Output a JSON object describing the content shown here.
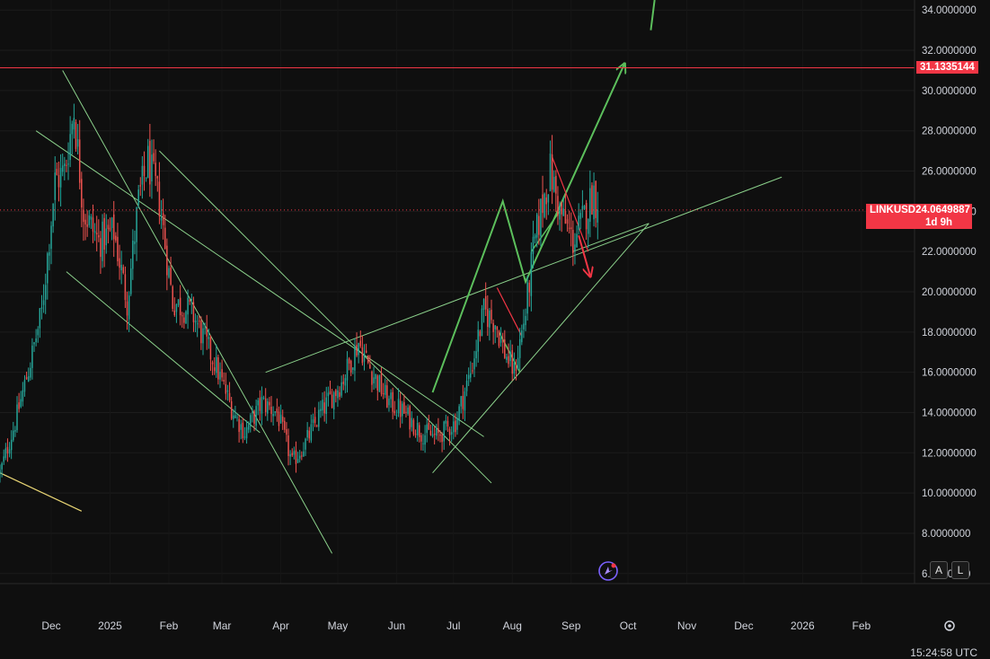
{
  "chart_data": {
    "type": "candlestick",
    "symbol": "LINKUSD",
    "y_ticks": [
      "6.0000000",
      "8.0000000",
      "10.0000000",
      "12.0000000",
      "14.0000000",
      "16.0000000",
      "18.0000000",
      "20.0000000",
      "22.0000000",
      "24.0000000",
      "26.0000000",
      "28.0000000",
      "30.0000000",
      "32.0000000",
      "34.0000000"
    ],
    "x_labels": [
      {
        "label": "Dec",
        "date": "2024-12-01"
      },
      {
        "label": "2025",
        "date": "2025-01-01"
      },
      {
        "label": "Feb",
        "date": "2025-02-01"
      },
      {
        "label": "Mar",
        "date": "2025-03-01"
      },
      {
        "label": "Apr",
        "date": "2025-04-01"
      },
      {
        "label": "May",
        "date": "2025-05-01"
      },
      {
        "label": "Jun",
        "date": "2025-06-01"
      },
      {
        "label": "Jul",
        "date": "2025-07-01"
      },
      {
        "label": "Aug",
        "date": "2025-08-01"
      },
      {
        "label": "Sep",
        "date": "2025-09-01"
      },
      {
        "label": "Oct",
        "date": "2025-10-01"
      },
      {
        "label": "Nov",
        "date": "2025-11-01"
      },
      {
        "label": "Dec",
        "date": "2025-12-01"
      },
      {
        "label": "2026",
        "date": "2026-01-01"
      },
      {
        "label": "Feb",
        "date": "2026-02-01"
      }
    ],
    "y_range": [
      5.5,
      34.5
    ],
    "x_range": [
      "2024-11-04",
      "2026-03-01"
    ],
    "horizontal_level": {
      "value": 31.1335144,
      "label": "31.1335144",
      "color": "#f23645"
    },
    "last_price": {
      "value": 24.0649887,
      "symbol_label": "LINKUSD",
      "value_label": "24.0649887",
      "countdown": "1d 9h",
      "color": "#f23645"
    },
    "candle_anchors": [
      [
        "2024-11-04",
        11.0
      ],
      [
        "2024-11-12",
        13.5
      ],
      [
        "2024-11-20",
        16.5
      ],
      [
        "2024-11-26",
        19.0
      ],
      [
        "2024-12-03",
        25.5
      ],
      [
        "2024-12-08",
        26.0
      ],
      [
        "2024-12-13",
        29.0
      ],
      [
        "2024-12-18",
        24.0
      ],
      [
        "2024-12-26",
        22.5
      ],
      [
        "2025-01-03",
        23.0
      ],
      [
        "2025-01-10",
        19.5
      ],
      [
        "2025-01-16",
        24.5
      ],
      [
        "2025-01-21",
        26.5
      ],
      [
        "2025-01-27",
        24.5
      ],
      [
        "2025-02-03",
        19.5
      ],
      [
        "2025-02-13",
        19.0
      ],
      [
        "2025-02-25",
        16.5
      ],
      [
        "2025-03-07",
        14.0
      ],
      [
        "2025-03-13",
        13.0
      ],
      [
        "2025-03-22",
        14.5
      ],
      [
        "2025-03-30",
        14.0
      ],
      [
        "2025-04-07",
        11.5
      ],
      [
        "2025-04-14",
        12.5
      ],
      [
        "2025-04-22",
        14.0
      ],
      [
        "2025-05-03",
        15.5
      ],
      [
        "2025-05-12",
        17.5
      ],
      [
        "2025-05-19",
        16.0
      ],
      [
        "2025-05-28",
        14.5
      ],
      [
        "2025-06-05",
        14.0
      ],
      [
        "2025-06-14",
        13.0
      ],
      [
        "2025-06-22",
        12.8
      ],
      [
        "2025-07-02",
        13.5
      ],
      [
        "2025-07-10",
        16.0
      ],
      [
        "2025-07-17",
        19.0
      ],
      [
        "2025-07-23",
        18.5
      ],
      [
        "2025-07-28",
        17.0
      ],
      [
        "2025-08-02",
        16.0
      ],
      [
        "2025-08-08",
        19.0
      ],
      [
        "2025-08-12",
        22.0
      ],
      [
        "2025-08-16",
        24.0
      ],
      [
        "2025-08-21",
        26.0
      ],
      [
        "2025-08-26",
        24.0
      ],
      [
        "2025-09-02",
        22.5
      ],
      [
        "2025-09-07",
        23.5
      ],
      [
        "2025-09-13",
        25.0
      ],
      [
        "2025-09-15",
        24.0649887
      ]
    ],
    "drawings": [
      {
        "kind": "line",
        "color": "#8bd18b",
        "pts": [
          [
            "2024-12-07",
            31.0
          ],
          [
            "2025-04-28",
            7.0
          ]
        ]
      },
      {
        "kind": "line",
        "color": "#8bd18b",
        "pts": [
          [
            "2024-11-23",
            28.0
          ],
          [
            "2025-07-17",
            12.8
          ]
        ]
      },
      {
        "kind": "line",
        "color": "#8bd18b",
        "pts": [
          [
            "2024-12-09",
            21.0
          ],
          [
            "2025-03-21",
            13.0
          ]
        ]
      },
      {
        "kind": "line",
        "color": "#8bd18b",
        "pts": [
          [
            "2025-01-27",
            27.0
          ],
          [
            "2025-07-21",
            10.5
          ]
        ]
      },
      {
        "kind": "line",
        "color": "#8bd18b",
        "pts": [
          [
            "2025-03-24",
            16.0
          ],
          [
            "2025-12-21",
            25.7
          ]
        ]
      },
      {
        "kind": "line",
        "color": "#8bd18b",
        "pts": [
          [
            "2025-06-20",
            11.0
          ],
          [
            "2025-10-12",
            23.4
          ]
        ]
      },
      {
        "kind": "line",
        "color": "#8bd18b",
        "pts": [
          [
            "2025-09-02",
            22.0
          ],
          [
            "2025-10-12",
            23.4
          ]
        ]
      },
      {
        "kind": "polyline",
        "color": "#5cbf5c",
        "width": 2,
        "arrow": true,
        "pts": [
          [
            "2025-06-20",
            15.0
          ],
          [
            "2025-07-27",
            24.5
          ],
          [
            "2025-08-08",
            20.5
          ],
          [
            "2025-09-29",
            31.3
          ]
        ]
      },
      {
        "kind": "line",
        "color": "#5cbf5c",
        "width": 2,
        "pts": [
          [
            "2025-10-13",
            33.0
          ],
          [
            "2025-10-15",
            34.5
          ]
        ]
      },
      {
        "kind": "line",
        "color": "#5cbf5c",
        "width": 1.5,
        "pts": [
          [
            "2025-07-25",
            18.0
          ],
          [
            "2025-08-05",
            16.0
          ]
        ]
      },
      {
        "kind": "line",
        "color": "#5cbf5c",
        "width": 1.5,
        "pts": [
          [
            "2025-08-11",
            22.0
          ],
          [
            "2025-08-26",
            24.0
          ]
        ]
      },
      {
        "kind": "line",
        "color": "#f23645",
        "width": 1.2,
        "pts": [
          [
            "2025-07-24",
            20.2
          ],
          [
            "2025-08-06",
            17.8
          ]
        ]
      },
      {
        "kind": "line",
        "color": "#f23645",
        "width": 1.2,
        "pts": [
          [
            "2025-08-22",
            26.7
          ],
          [
            "2025-09-10",
            22.0
          ]
        ]
      },
      {
        "kind": "arrow",
        "color": "#f23645",
        "width": 2,
        "pts": [
          [
            "2025-09-05",
            22.8
          ],
          [
            "2025-09-11",
            20.8
          ]
        ]
      },
      {
        "kind": "line",
        "color": "#e8d574",
        "width": 1.2,
        "pts": [
          [
            "2024-11-04",
            11.0
          ],
          [
            "2024-12-17",
            9.1
          ]
        ]
      }
    ]
  },
  "ui": {
    "axis_buttons": [
      "A",
      "L"
    ],
    "settings_icon": "gear-icon",
    "app_icon": "sparkle-icon",
    "time_readout": "15:24:58 UTC"
  }
}
